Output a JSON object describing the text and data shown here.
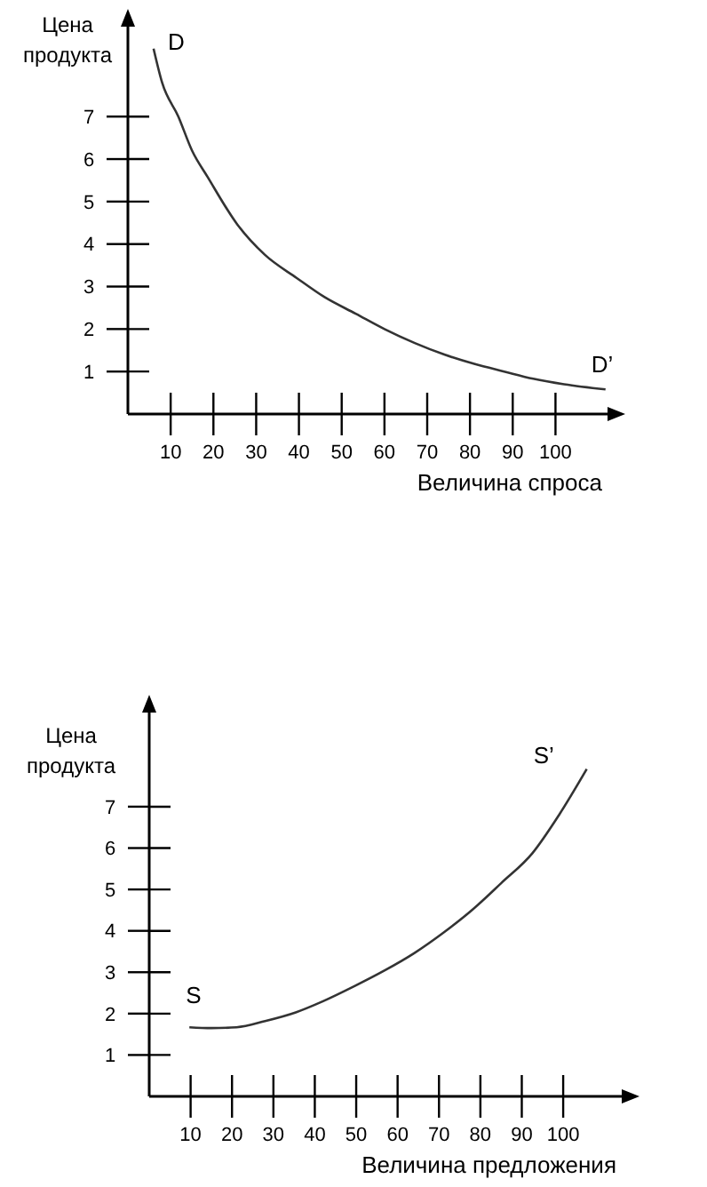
{
  "chart_data": [
    {
      "type": "line",
      "xlabel": "Величина спроса",
      "ylabel": "Цена продукта",
      "xlim": [
        0,
        113
      ],
      "ylim": [
        0,
        9.2
      ],
      "xticks": [
        10,
        20,
        30,
        40,
        50,
        60,
        70,
        80,
        90,
        100
      ],
      "yticks": [
        1,
        2,
        3,
        4,
        5,
        6,
        7
      ],
      "grid": false,
      "series": [
        {
          "color": "#333333",
          "x": [
            6,
            8,
            11.8,
            15,
            18.7,
            25.6,
            32,
            39.5,
            46,
            53.3,
            60,
            67.1,
            74,
            81,
            88,
            94.8,
            102,
            111.7
          ],
          "values": [
            8.6,
            7.8,
            7.0,
            6.2,
            5.57,
            4.46,
            3.75,
            3.2,
            2.75,
            2.36,
            2.0,
            1.67,
            1.4,
            1.18,
            1.0,
            0.83,
            0.7,
            0.58
          ]
        }
      ],
      "annotations": [
        "D",
        "D’"
      ]
    },
    {
      "type": "line",
      "xlabel": "Величина предложения",
      "ylabel": "Цена продукта",
      "xlim": [
        0,
        115
      ],
      "ylim": [
        0,
        9.36
      ],
      "xticks": [
        10,
        20,
        30,
        40,
        50,
        60,
        70,
        80,
        90,
        100
      ],
      "yticks": [
        1,
        2,
        3,
        4,
        5,
        6,
        7
      ],
      "grid": false,
      "series": [
        {
          "color": "#333333",
          "x": [
            9.7,
            15,
            21.1,
            28,
            35.4,
            42,
            49.7,
            57,
            64,
            71,
            78.3,
            85,
            92.6,
            99,
            105.7
          ],
          "values": [
            1.67,
            1.65,
            1.67,
            1.82,
            2.03,
            2.3,
            2.67,
            3.05,
            3.46,
            3.95,
            4.53,
            5.15,
            5.88,
            6.8,
            7.91
          ]
        }
      ],
      "annotations": [
        "S",
        "S’"
      ]
    }
  ]
}
